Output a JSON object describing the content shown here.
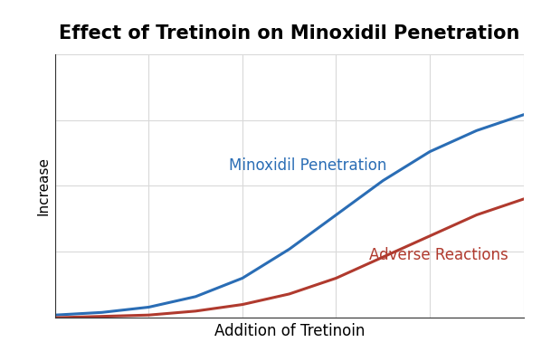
{
  "chart_data": {
    "type": "line",
    "title": "Effect of Tretinoin on Minoxidil Penetration",
    "x_label": "Addition of Tretinoin",
    "y_label": "Increase",
    "x": [
      0,
      1,
      2,
      3,
      4,
      5,
      6,
      7,
      8,
      9,
      10
    ],
    "series": [
      {
        "name": "Minoxidil Penetration",
        "color": "#2a6db5",
        "values": [
          0.1,
          0.2,
          0.4,
          0.8,
          1.5,
          2.6,
          3.9,
          5.2,
          6.3,
          7.1,
          7.7
        ]
      },
      {
        "name": "Adverse Reactions",
        "color": "#b03a2e",
        "values": [
          0.0,
          0.05,
          0.1,
          0.25,
          0.5,
          0.9,
          1.5,
          2.3,
          3.1,
          3.9,
          4.5
        ]
      }
    ],
    "xlim": [
      0,
      10
    ],
    "xticks": [
      0,
      2,
      4,
      6,
      8,
      10
    ],
    "ylim": [
      0,
      10
    ],
    "yticks": [
      0,
      2.5,
      5,
      7.5,
      10
    ],
    "grid": true,
    "tick_labels": false
  }
}
